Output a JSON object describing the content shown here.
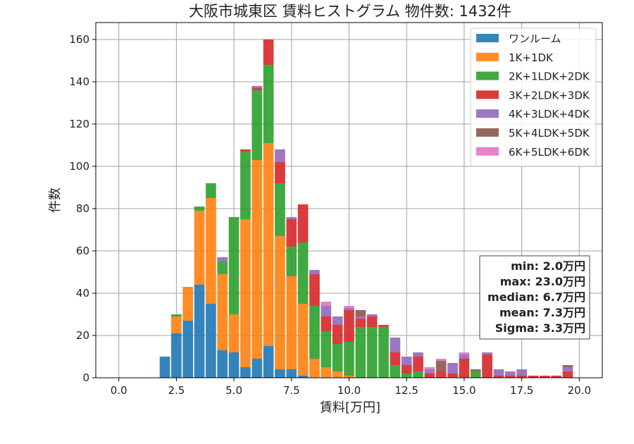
{
  "chart_data": {
    "type": "bar",
    "stacked": true,
    "title": "大阪市城東区 賃料ヒストグラム 物件数: 1432件",
    "xlabel": "賃料[万円]",
    "ylabel": "件数",
    "xlim": [
      -1,
      21
    ],
    "ylim": [
      0,
      168
    ],
    "x_ticks": [
      0.0,
      2.5,
      5.0,
      7.5,
      10.0,
      12.5,
      15.0,
      17.5,
      20.0
    ],
    "x_tick_labels": [
      "0.0",
      "2.5",
      "5.0",
      "7.5",
      "10.0",
      "12.5",
      "15.0",
      "17.5",
      "20.0"
    ],
    "y_ticks": [
      0,
      20,
      40,
      60,
      80,
      100,
      120,
      140,
      160
    ],
    "y_tick_labels": [
      "0",
      "20",
      "40",
      "60",
      "80",
      "100",
      "120",
      "140",
      "160"
    ],
    "grid": true,
    "legend_position": "top-right",
    "bin_width": 0.5,
    "x": [
      2.0,
      2.5,
      3.0,
      3.5,
      4.0,
      4.5,
      5.0,
      5.5,
      6.0,
      6.5,
      7.0,
      7.5,
      8.0,
      8.5,
      9.0,
      9.5,
      10.0,
      10.5,
      11.0,
      11.5,
      12.0,
      12.5,
      13.0,
      13.5,
      14.0,
      14.5,
      15.0,
      15.5,
      16.0,
      16.5,
      17.0,
      17.5,
      18.0,
      18.5,
      19.0,
      19.5
    ],
    "series": [
      {
        "name": "ワンルーム",
        "color": "#1f77b4",
        "values": [
          10,
          21,
          27,
          44,
          35,
          13,
          12,
          5,
          9,
          15,
          4,
          4,
          1,
          0,
          0,
          0,
          0,
          0,
          0,
          0,
          0,
          0,
          0,
          0,
          0,
          0,
          0,
          0,
          0,
          0,
          0,
          0,
          0,
          0,
          0,
          0
        ]
      },
      {
        "name": "1K+1DK",
        "color": "#ff7f0e",
        "values": [
          0,
          8,
          16,
          35,
          50,
          36,
          18,
          70,
          94,
          96,
          63,
          44,
          34,
          9,
          5,
          3,
          1,
          0,
          0,
          0,
          0,
          0,
          0,
          0,
          0,
          0,
          0,
          0,
          0,
          0,
          0,
          0,
          0,
          0,
          0,
          0
        ]
      },
      {
        "name": "2K+1LDK+2DK",
        "color": "#2ca02c",
        "values": [
          0,
          1,
          0,
          2,
          7,
          6,
          46,
          32,
          33,
          37,
          25,
          14,
          29,
          25,
          17,
          13,
          16,
          24,
          24,
          24,
          6,
          2,
          3,
          0,
          0,
          0,
          0,
          3,
          0,
          0,
          0,
          0,
          0,
          0,
          0,
          0
        ]
      },
      {
        "name": "3K+2LDK+3DK",
        "color": "#d62728",
        "values": [
          0,
          0,
          0,
          0,
          0,
          0,
          0,
          1,
          1,
          12,
          10,
          13,
          18,
          15,
          7,
          9,
          15,
          4,
          5,
          1,
          6,
          4,
          7,
          2,
          3,
          2,
          9,
          0,
          11,
          1,
          1,
          1,
          1,
          1,
          1,
          3
        ]
      },
      {
        "name": "4K+3LDK+4DK",
        "color": "#9467bd",
        "values": [
          0,
          0,
          0,
          0,
          0,
          2,
          0,
          0,
          1,
          0,
          6,
          1,
          0,
          2,
          5,
          4,
          1,
          1,
          1,
          0,
          7,
          4,
          2,
          2,
          0,
          5,
          2,
          0,
          1,
          3,
          2,
          3,
          0,
          0,
          0,
          2
        ]
      },
      {
        "name": "5K+4LDK+5DK",
        "color": "#8c564b",
        "values": [
          0,
          0,
          0,
          0,
          0,
          0,
          0,
          0,
          0,
          0,
          0,
          0,
          0,
          0,
          0,
          0,
          0,
          3,
          0,
          0,
          0,
          0,
          0,
          0,
          5,
          0,
          0,
          1,
          0,
          0,
          0,
          0,
          0,
          0,
          0,
          1
        ]
      },
      {
        "name": "6K+5LDK+6DK",
        "color": "#e377c2",
        "values": [
          0,
          0,
          0,
          0,
          0,
          0,
          0,
          0,
          0,
          0,
          0,
          0,
          0,
          0,
          2,
          0,
          1,
          0,
          0,
          0,
          0,
          0,
          0,
          1,
          1,
          0,
          1,
          0,
          0,
          0,
          0,
          0,
          0,
          0,
          0,
          0
        ]
      }
    ],
    "stats": [
      "min: 2.0万円",
      "max: 23.0万円",
      "median: 6.7万円",
      "mean: 7.3万円",
      "Sigma: 3.3万円"
    ]
  }
}
